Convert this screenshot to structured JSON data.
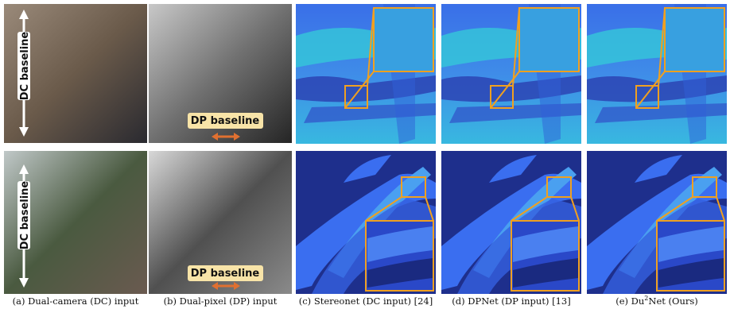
{
  "panels": [
    {
      "caption": "(a) Dual-camera (DC) input",
      "labels": [
        "DC baseline",
        "DC baseline"
      ]
    },
    {
      "caption": "(b) Dual-pixel (DP) input",
      "labels": [
        "DP baseline",
        "DP baseline"
      ]
    },
    {
      "caption": "(c) Stereonet (DC input) [24]"
    },
    {
      "caption": "(d) DPNet (DP input) [13]"
    },
    {
      "caption": {
        "prefix": "(e) Du",
        "sup": "2",
        "suffix": "Net (Ours)"
      }
    }
  ]
}
